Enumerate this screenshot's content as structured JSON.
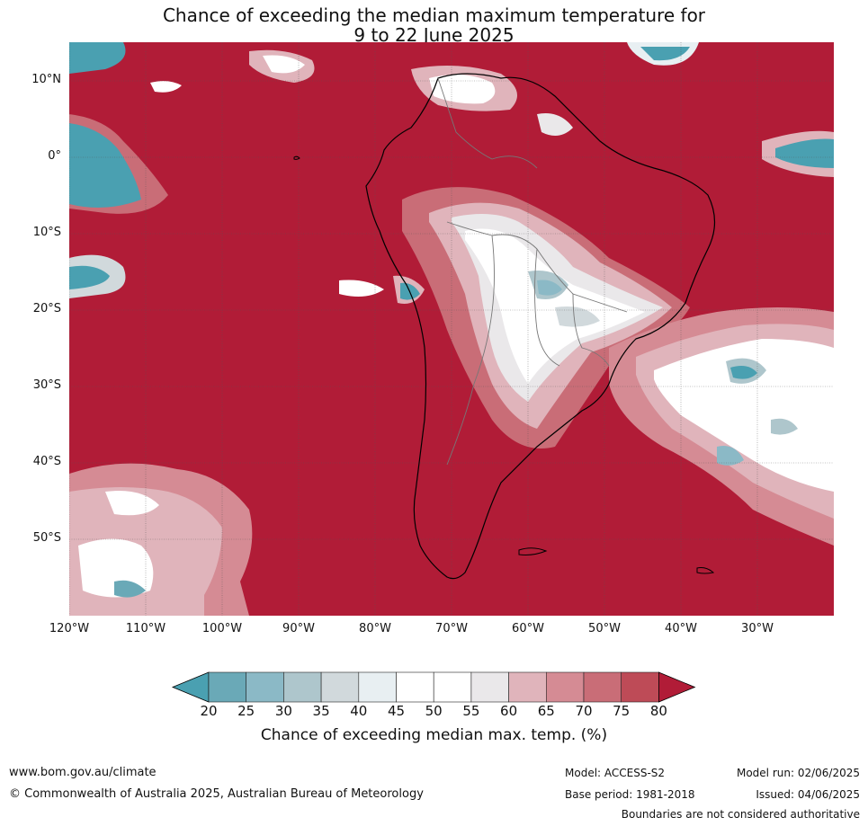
{
  "title": {
    "line1": "Chance of exceeding the median maximum temperature for",
    "line2": "9 to 22 June 2025"
  },
  "lat_labels": [
    "10°N",
    "0°",
    "10°S",
    "20°S",
    "30°S",
    "40°S",
    "50°S"
  ],
  "lon_labels": [
    "120°W",
    "110°W",
    "100°W",
    "90°W",
    "80°W",
    "70°W",
    "60°W",
    "50°W",
    "40°W",
    "30°W"
  ],
  "colorbar": {
    "ticks": [
      "20",
      "25",
      "30",
      "35",
      "40",
      "45",
      "50",
      "55",
      "60",
      "65",
      "70",
      "75",
      "80"
    ],
    "colors": [
      "#4aa0b1",
      "#6aa9b7",
      "#8bb9c6",
      "#aec6cc",
      "#d1d9dc",
      "#e8eff2",
      "#ffffff",
      "#ffffff",
      "#eae8ea",
      "#e0b4bb",
      "#d58b94",
      "#c96d77",
      "#be4b57",
      "#b11c37"
    ],
    "label": "Chance of exceeding median max. temp. (%)"
  },
  "footer": {
    "website": "www.bom.gov.au/climate",
    "copyright": "© Commonwealth of Australia 2025, Australian Bureau of Meteorology",
    "model": "Model: ACCESS-S2",
    "model_run": "Model run: 02/06/2025",
    "base_period": "Base period: 1981-2018",
    "issued": "Issued: 04/06/2025",
    "disclaimer": "Boundaries are not considered authoritative"
  }
}
